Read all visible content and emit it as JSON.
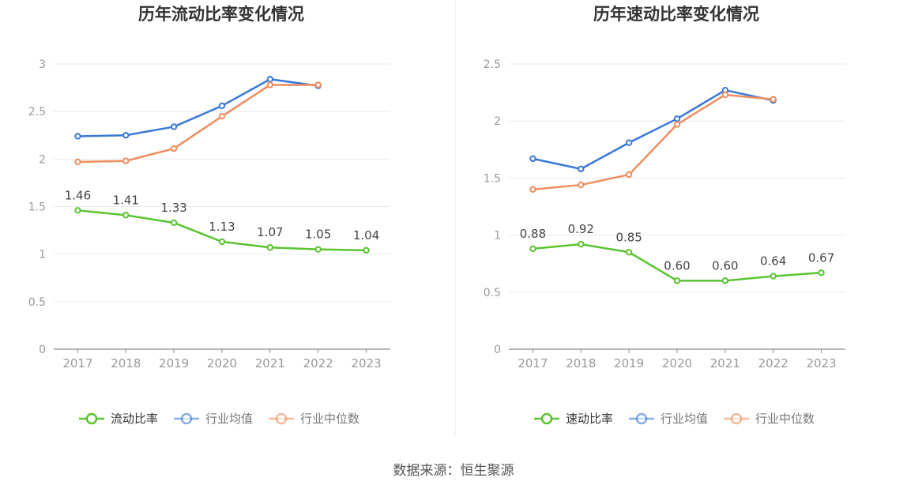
{
  "colors": {
    "company": "#5ac430",
    "industry_avg": "#3a78d8",
    "industry_median": "#f08c5e",
    "grid": "#e6e9f2",
    "axis_text": "#999999",
    "title_text": "#333333",
    "label_text": "#444444"
  },
  "chart_data": [
    {
      "type": "line",
      "title": "历年流动比率变化情况",
      "categories": [
        "2017",
        "2018",
        "2019",
        "2020",
        "2021",
        "2022",
        "2023"
      ],
      "ylim": [
        0,
        3
      ],
      "yticks": [
        "0",
        "0.5",
        "1",
        "1.5",
        "2",
        "2.5",
        "3"
      ],
      "ytick_values": [
        0,
        0.5,
        1,
        1.5,
        2,
        2.5,
        3
      ],
      "grid": true,
      "legend_position": "bottom",
      "series": [
        {
          "name": "流动比率",
          "key": "company",
          "values": [
            1.46,
            1.41,
            1.33,
            1.13,
            1.07,
            1.05,
            1.04
          ],
          "data_labels": [
            "1.46",
            "1.41",
            "1.33",
            "1.13",
            "1.07",
            "1.05",
            "1.04"
          ]
        },
        {
          "name": "行业均值",
          "key": "industry_avg",
          "values": [
            2.24,
            2.25,
            2.34,
            2.56,
            2.84,
            2.77,
            null
          ]
        },
        {
          "name": "行业中位数",
          "key": "industry_median",
          "values": [
            1.97,
            1.98,
            2.11,
            2.45,
            2.78,
            2.78,
            null
          ]
        }
      ]
    },
    {
      "type": "line",
      "title": "历年速动比率变化情况",
      "categories": [
        "2017",
        "2018",
        "2019",
        "2020",
        "2021",
        "2022",
        "2023"
      ],
      "ylim": [
        0,
        2.5
      ],
      "yticks": [
        "0",
        "0.5",
        "1",
        "1.5",
        "2",
        "2.5"
      ],
      "ytick_values": [
        0,
        0.5,
        1,
        1.5,
        2,
        2.5
      ],
      "grid": true,
      "legend_position": "bottom",
      "series": [
        {
          "name": "速动比率",
          "key": "company",
          "values": [
            0.88,
            0.92,
            0.85,
            0.6,
            0.6,
            0.64,
            0.67
          ],
          "data_labels": [
            "0.88",
            "0.92",
            "0.85",
            "0.60",
            "0.60",
            "0.64",
            "0.67"
          ]
        },
        {
          "name": "行业均值",
          "key": "industry_avg",
          "values": [
            1.67,
            1.58,
            1.81,
            2.02,
            2.27,
            2.18,
            null
          ]
        },
        {
          "name": "行业中位数",
          "key": "industry_median",
          "values": [
            1.4,
            1.44,
            1.53,
            1.97,
            2.23,
            2.19,
            null
          ]
        }
      ]
    }
  ],
  "footer": {
    "source_text": "数据来源：恒生聚源"
  }
}
